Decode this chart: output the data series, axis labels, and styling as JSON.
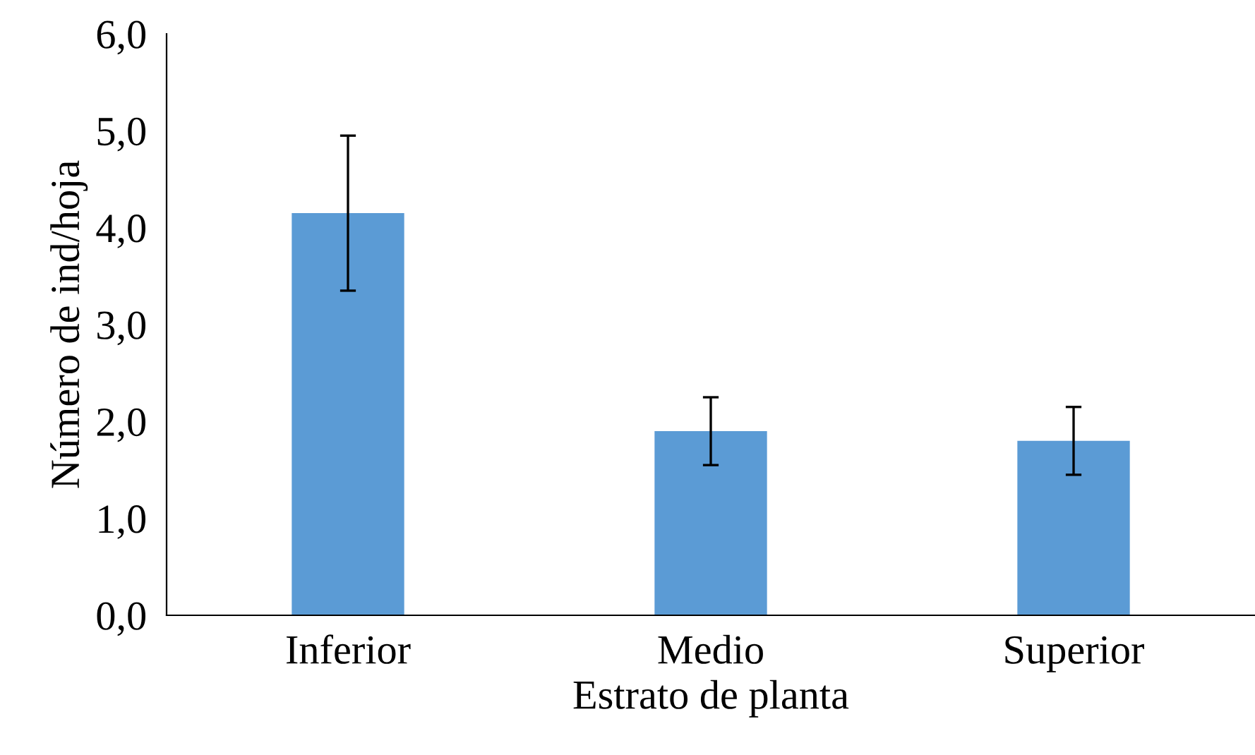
{
  "chart_data": {
    "type": "bar",
    "xlabel": "Estrato de planta",
    "ylabel": "Número de ind/hoja",
    "categories": [
      "Inferior",
      "Medio",
      "Superior"
    ],
    "values": [
      4.15,
      1.9,
      1.8
    ],
    "errors": [
      0.8,
      0.35,
      0.35
    ],
    "color": "#5b9bd5",
    "ylim": [
      0,
      6
    ],
    "yticks": [
      {
        "value": 0,
        "label": "0,0"
      },
      {
        "value": 1,
        "label": "1,0"
      },
      {
        "value": 2,
        "label": "2,0"
      },
      {
        "value": 3,
        "label": "3,0"
      },
      {
        "value": 4,
        "label": "4,0"
      },
      {
        "value": 5,
        "label": "5,0"
      },
      {
        "value": 6,
        "label": "6,0"
      }
    ],
    "grid": false,
    "legend": false
  }
}
